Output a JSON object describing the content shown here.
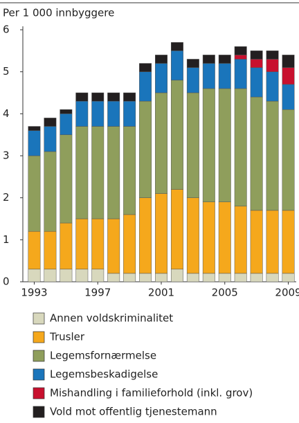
{
  "chart_data": {
    "type": "stacked_bar",
    "title": "Per 1 000 innbyggere",
    "categories": [
      "1993",
      null,
      null,
      null,
      "1997",
      null,
      null,
      null,
      "2001",
      null,
      null,
      null,
      "2005",
      null,
      null,
      null,
      "2009"
    ],
    "series": [
      {
        "name": "Annen voldskriminalitet",
        "color": "#d8d8bd",
        "values": [
          0.3,
          0.3,
          0.3,
          0.3,
          0.3,
          0.2,
          0.2,
          0.2,
          0.2,
          0.3,
          0.2,
          0.2,
          0.2,
          0.2,
          0.2,
          0.2,
          0.2
        ]
      },
      {
        "name": "Trusler",
        "color": "#f5a81c",
        "values": [
          0.9,
          0.9,
          1.1,
          1.2,
          1.2,
          1.3,
          1.4,
          1.8,
          1.9,
          1.9,
          1.8,
          1.7,
          1.7,
          1.6,
          1.5,
          1.5,
          1.5
        ]
      },
      {
        "name": "Legemsfornærmelse",
        "color": "#8f9e5c",
        "values": [
          1.8,
          1.9,
          2.1,
          2.2,
          2.2,
          2.2,
          2.1,
          2.3,
          2.4,
          2.6,
          2.5,
          2.7,
          2.7,
          2.8,
          2.7,
          2.6,
          2.4
        ]
      },
      {
        "name": "Legemsbeskadigelse",
        "color": "#1a75bb",
        "values": [
          0.6,
          0.6,
          0.5,
          0.6,
          0.6,
          0.6,
          0.6,
          0.7,
          0.7,
          0.7,
          0.6,
          0.6,
          0.6,
          0.7,
          0.7,
          0.7,
          0.6
        ]
      },
      {
        "name": "Mishandling i familieforhold (inkl. grov)",
        "color": "#c8102e",
        "values": [
          0,
          0,
          0,
          0,
          0,
          0,
          0,
          0,
          0,
          0,
          0,
          0,
          0,
          0.1,
          0.2,
          0.3,
          0.4
        ]
      },
      {
        "name": "Vold mot offentlig tjenestemann",
        "color": "#231f20",
        "values": [
          0.1,
          0.2,
          0.1,
          0.2,
          0.2,
          0.2,
          0.2,
          0.2,
          0.2,
          0.2,
          0.2,
          0.2,
          0.2,
          0.2,
          0.2,
          0.2,
          0.3
        ]
      }
    ],
    "ylim": [
      0,
      6
    ],
    "yticks": [
      0,
      1,
      2,
      3,
      4,
      5,
      6
    ]
  }
}
